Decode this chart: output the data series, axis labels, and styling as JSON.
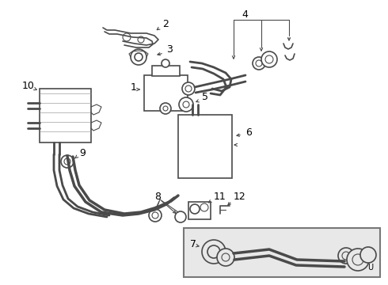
{
  "bg_color": "#ffffff",
  "line_color": "#4a4a4a",
  "text_color": "#000000",
  "fig_width": 4.9,
  "fig_height": 3.6,
  "dpi": 100,
  "border_bg": "#e8e8e8"
}
